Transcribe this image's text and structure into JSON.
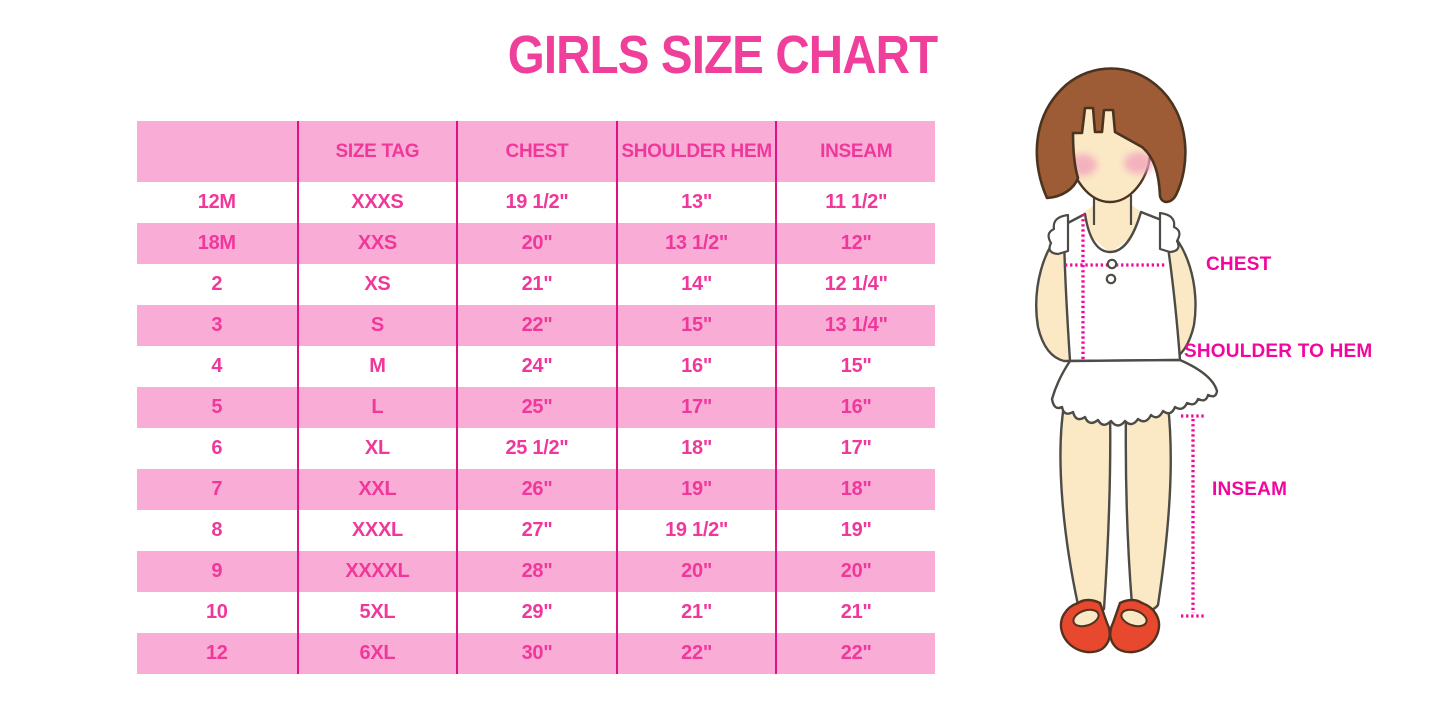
{
  "title": "GIRLS SIZE CHART",
  "colors": {
    "accent_pink_text": "#F0389B",
    "row_pink": "#F9ADD6",
    "divider_magenta": "#E01283",
    "label_magenta": "#F2079E",
    "hair_brown": "#9E5C36",
    "skin": "#FBE8C5",
    "shoe_red": "#E8482E",
    "background": "#FFFFFF"
  },
  "table": {
    "columns": [
      "",
      "SIZE TAG",
      "CHEST",
      "SHOULDER HEM",
      "INSEAM"
    ],
    "rows": [
      [
        "12M",
        "XXXS",
        "19 1/2\"",
        "13\"",
        "11 1/2\""
      ],
      [
        "18M",
        "XXS",
        "20\"",
        "13 1/2\"",
        "12\""
      ],
      [
        "2",
        "XS",
        "21\"",
        "14\"",
        "12 1/4\""
      ],
      [
        "3",
        "S",
        "22\"",
        "15\"",
        "13 1/4\""
      ],
      [
        "4",
        "M",
        "24\"",
        "16\"",
        "15\""
      ],
      [
        "5",
        "L",
        "25\"",
        "17\"",
        "16\""
      ],
      [
        "6",
        "XL",
        "25 1/2\"",
        "18\"",
        "17\""
      ],
      [
        "7",
        "XXL",
        "26\"",
        "19\"",
        "18\""
      ],
      [
        "8",
        "XXXL",
        "27\"",
        "19 1/2\"",
        "19\""
      ],
      [
        "9",
        "XXXXL",
        "28\"",
        "20\"",
        "20\""
      ],
      [
        "10",
        "5XL",
        "29\"",
        "21\"",
        "21\""
      ],
      [
        "12",
        "6XL",
        "30\"",
        "22\"",
        "22\""
      ]
    ]
  },
  "figure": {
    "labels": {
      "chest": "CHEST",
      "shoulder_to_hem": "SHOULDER TO HEM",
      "inseam": "INSEAM"
    }
  }
}
